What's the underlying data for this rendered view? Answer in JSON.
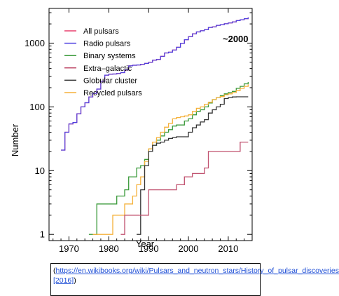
{
  "chart_data": {
    "type": "line",
    "xlabel": "Year",
    "ylabel": "Number",
    "xlim": [
      1965,
      2016
    ],
    "ylim": [
      0.8,
      3500
    ],
    "yscale": "log",
    "x_ticks": [
      1970,
      1980,
      1990,
      2000,
      2010
    ],
    "y_ticks": [
      1,
      10,
      100,
      1000
    ],
    "y_tick_labels": [
      "1",
      "10",
      "100",
      "1000"
    ],
    "legend_position": "top-left",
    "annotation": "~2000",
    "series": [
      {
        "name": "All pulsars",
        "color": "#e8416f",
        "points": [
          [
            1968,
            21
          ],
          [
            1969,
            40
          ],
          [
            1970,
            54
          ],
          [
            1971,
            57
          ],
          [
            1972,
            78
          ],
          [
            1973,
            100
          ],
          [
            1974,
            116
          ],
          [
            1975,
            143
          ],
          [
            1976,
            163
          ],
          [
            1977,
            190
          ],
          [
            1978,
            253
          ],
          [
            1979,
            315
          ],
          [
            1980,
            325
          ],
          [
            1981,
            328
          ],
          [
            1982,
            334
          ],
          [
            1983,
            345
          ],
          [
            1984,
            380
          ],
          [
            1985,
            440
          ],
          [
            1986,
            450
          ],
          [
            1987,
            455
          ],
          [
            1988,
            465
          ],
          [
            1989,
            480
          ],
          [
            1990,
            500
          ],
          [
            1991,
            540
          ],
          [
            1992,
            555
          ],
          [
            1993,
            620
          ],
          [
            1994,
            700
          ],
          [
            1995,
            720
          ],
          [
            1996,
            780
          ],
          [
            1997,
            860
          ],
          [
            1998,
            990
          ],
          [
            1999,
            1130
          ],
          [
            2000,
            1260
          ],
          [
            2001,
            1400
          ],
          [
            2002,
            1500
          ],
          [
            2003,
            1560
          ],
          [
            2004,
            1620
          ],
          [
            2005,
            1760
          ],
          [
            2006,
            1800
          ],
          [
            2007,
            1900
          ],
          [
            2008,
            1950
          ],
          [
            2009,
            2010
          ],
          [
            2010,
            2070
          ],
          [
            2011,
            2150
          ],
          [
            2012,
            2250
          ],
          [
            2013,
            2330
          ],
          [
            2014,
            2420
          ],
          [
            2015,
            2530
          ]
        ]
      },
      {
        "name": "Radio pulsars",
        "color": "#4d3fe0",
        "points": [
          [
            1968,
            21
          ],
          [
            1969,
            40
          ],
          [
            1970,
            54
          ],
          [
            1971,
            57
          ],
          [
            1972,
            78
          ],
          [
            1973,
            100
          ],
          [
            1974,
            116
          ],
          [
            1975,
            143
          ],
          [
            1976,
            163
          ],
          [
            1977,
            190
          ],
          [
            1978,
            253
          ],
          [
            1979,
            315
          ],
          [
            1980,
            325
          ],
          [
            1981,
            328
          ],
          [
            1982,
            334
          ],
          [
            1983,
            345
          ],
          [
            1984,
            380
          ],
          [
            1985,
            440
          ],
          [
            1986,
            450
          ],
          [
            1987,
            455
          ],
          [
            1988,
            465
          ],
          [
            1989,
            480
          ],
          [
            1990,
            500
          ],
          [
            1991,
            540
          ],
          [
            1992,
            555
          ],
          [
            1993,
            620
          ],
          [
            1994,
            700
          ],
          [
            1995,
            720
          ],
          [
            1996,
            780
          ],
          [
            1997,
            860
          ],
          [
            1998,
            990
          ],
          [
            1999,
            1130
          ],
          [
            2000,
            1260
          ],
          [
            2001,
            1400
          ],
          [
            2002,
            1500
          ],
          [
            2003,
            1560
          ],
          [
            2004,
            1620
          ],
          [
            2005,
            1760
          ],
          [
            2006,
            1800
          ],
          [
            2007,
            1900
          ],
          [
            2008,
            1950
          ],
          [
            2009,
            2010
          ],
          [
            2010,
            2070
          ],
          [
            2011,
            2150
          ],
          [
            2012,
            2250
          ],
          [
            2013,
            2330
          ],
          [
            2014,
            2420
          ],
          [
            2015,
            2530
          ]
        ]
      },
      {
        "name": "Binary systems",
        "color": "#3a9a3a",
        "points": [
          [
            1975,
            1
          ],
          [
            1976,
            1
          ],
          [
            1977,
            3
          ],
          [
            1978,
            3
          ],
          [
            1979,
            3
          ],
          [
            1980,
            3
          ],
          [
            1981,
            3
          ],
          [
            1982,
            4
          ],
          [
            1983,
            4
          ],
          [
            1984,
            5
          ],
          [
            1985,
            8
          ],
          [
            1986,
            8
          ],
          [
            1987,
            11
          ],
          [
            1988,
            12
          ],
          [
            1989,
            15
          ],
          [
            1990,
            22
          ],
          [
            1991,
            25
          ],
          [
            1992,
            30
          ],
          [
            1993,
            35
          ],
          [
            1994,
            40
          ],
          [
            1995,
            44
          ],
          [
            1996,
            50
          ],
          [
            1997,
            52
          ],
          [
            1998,
            52
          ],
          [
            1999,
            60
          ],
          [
            2000,
            65
          ],
          [
            2001,
            75
          ],
          [
            2002,
            85
          ],
          [
            2003,
            90
          ],
          [
            2004,
            100
          ],
          [
            2005,
            115
          ],
          [
            2006,
            130
          ],
          [
            2007,
            140
          ],
          [
            2008,
            150
          ],
          [
            2009,
            160
          ],
          [
            2010,
            168
          ],
          [
            2011,
            175
          ],
          [
            2012,
            195
          ],
          [
            2013,
            210
          ],
          [
            2014,
            230
          ],
          [
            2015,
            245
          ]
        ]
      },
      {
        "name": "Extra–galactic",
        "color": "#c0506e",
        "points": [
          [
            1983,
            1
          ],
          [
            1984,
            2
          ],
          [
            1985,
            2
          ],
          [
            1986,
            2
          ],
          [
            1987,
            2
          ],
          [
            1988,
            2
          ],
          [
            1989,
            2
          ],
          [
            1990,
            5
          ],
          [
            1991,
            5
          ],
          [
            1992,
            5
          ],
          [
            1993,
            5
          ],
          [
            1994,
            5
          ],
          [
            1995,
            5
          ],
          [
            1996,
            5
          ],
          [
            1997,
            6
          ],
          [
            1998,
            6
          ],
          [
            1999,
            8
          ],
          [
            2000,
            8
          ],
          [
            2001,
            9
          ],
          [
            2002,
            9
          ],
          [
            2003,
            9
          ],
          [
            2004,
            11
          ],
          [
            2005,
            20
          ],
          [
            2006,
            20
          ],
          [
            2007,
            20
          ],
          [
            2008,
            20
          ],
          [
            2009,
            20
          ],
          [
            2010,
            20
          ],
          [
            2011,
            20
          ],
          [
            2012,
            20
          ],
          [
            2013,
            28
          ],
          [
            2014,
            28
          ],
          [
            2015,
            28
          ]
        ]
      },
      {
        "name": "Globular cluster",
        "color": "#333333",
        "points": [
          [
            1987,
            1
          ],
          [
            1988,
            5
          ],
          [
            1989,
            12
          ],
          [
            1990,
            20
          ],
          [
            1991,
            25
          ],
          [
            1992,
            27
          ],
          [
            1993,
            28
          ],
          [
            1994,
            30
          ],
          [
            1995,
            32
          ],
          [
            1996,
            33
          ],
          [
            1997,
            34
          ],
          [
            1998,
            34
          ],
          [
            1999,
            34
          ],
          [
            2000,
            40
          ],
          [
            2001,
            47
          ],
          [
            2002,
            52
          ],
          [
            2003,
            58
          ],
          [
            2004,
            63
          ],
          [
            2005,
            80
          ],
          [
            2006,
            90
          ],
          [
            2007,
            100
          ],
          [
            2008,
            110
          ],
          [
            2009,
            135
          ],
          [
            2010,
            140
          ],
          [
            2011,
            143
          ],
          [
            2012,
            144
          ],
          [
            2013,
            144
          ],
          [
            2014,
            144
          ],
          [
            2015,
            144
          ]
        ]
      },
      {
        "name": "Recycled pulsars",
        "color": "#f5b13a",
        "points": [
          [
            1976,
            1
          ],
          [
            1977,
            1
          ],
          [
            1978,
            1
          ],
          [
            1979,
            1
          ],
          [
            1980,
            1
          ],
          [
            1981,
            2
          ],
          [
            1982,
            2
          ],
          [
            1983,
            2
          ],
          [
            1984,
            3
          ],
          [
            1985,
            3
          ],
          [
            1986,
            4
          ],
          [
            1987,
            6
          ],
          [
            1988,
            8
          ],
          [
            1989,
            14
          ],
          [
            1990,
            22
          ],
          [
            1991,
            28
          ],
          [
            1992,
            33
          ],
          [
            1993,
            40
          ],
          [
            1994,
            48
          ],
          [
            1995,
            55
          ],
          [
            1996,
            65
          ],
          [
            1997,
            68
          ],
          [
            1998,
            70
          ],
          [
            1999,
            72
          ],
          [
            2000,
            75
          ],
          [
            2001,
            85
          ],
          [
            2002,
            95
          ],
          [
            2003,
            100
          ],
          [
            2004,
            110
          ],
          [
            2005,
            118
          ],
          [
            2006,
            130
          ],
          [
            2007,
            140
          ],
          [
            2008,
            145
          ],
          [
            2009,
            155
          ],
          [
            2010,
            160
          ],
          [
            2011,
            168
          ],
          [
            2012,
            180
          ],
          [
            2013,
            195
          ],
          [
            2014,
            210
          ],
          [
            2015,
            225
          ]
        ]
      }
    ]
  },
  "caption": {
    "open": "(",
    "link_text": "https://en.wikibooks.org/wiki/Pulsars_and_neutron_stars/History_of_pulsar_discoveries [2016]",
    "close": ")"
  }
}
